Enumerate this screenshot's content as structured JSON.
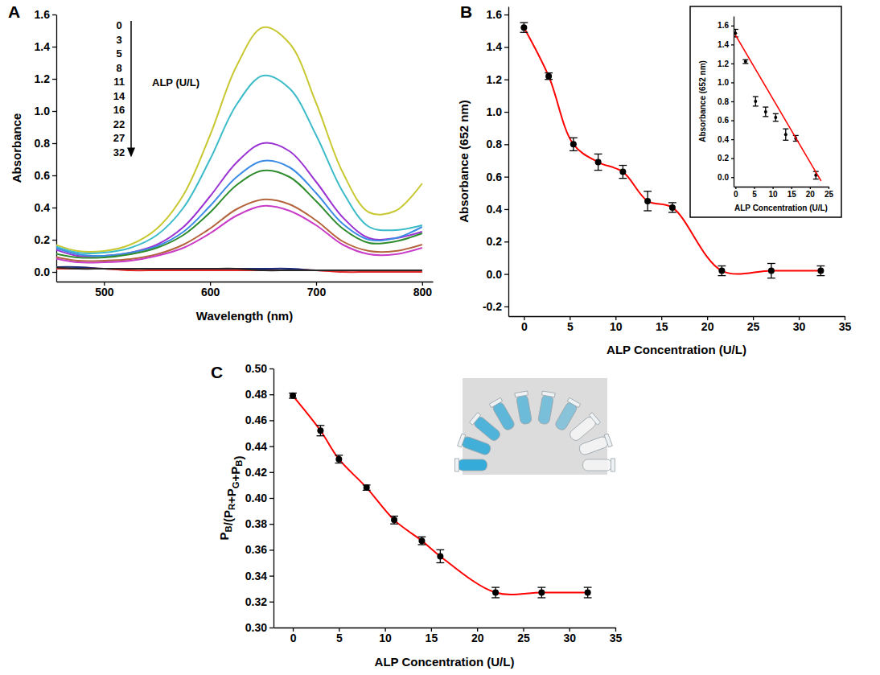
{
  "chart_data": [
    {
      "panel": "A",
      "type": "line",
      "x_label": "Wavelength (nm)",
      "y_label": "Absorbance",
      "x": [
        450,
        475,
        500,
        525,
        550,
        575,
        600,
        625,
        650,
        675,
        700,
        725,
        750,
        775,
        800
      ],
      "xlim": [
        455,
        810
      ],
      "xticks": [
        500,
        600,
        700,
        800
      ],
      "ylim": [
        -0.06,
        1.6
      ],
      "yticks": [
        {
          "value": 0,
          "label": "0.0"
        },
        0.2,
        0.4,
        0.6,
        0.8,
        {
          "value": 1,
          "label": "1.0"
        },
        1.2,
        1.4,
        1.6
      ],
      "legend": "upper left",
      "legend_title": "ALP (U/L)",
      "series": [
        {
          "name": "0",
          "color": "#c8c832",
          "values": [
            0.18,
            0.13,
            0.13,
            0.17,
            0.27,
            0.48,
            0.85,
            1.28,
            1.52,
            1.42,
            1.05,
            0.62,
            0.37,
            0.38,
            0.55
          ]
        },
        {
          "name": "3",
          "color": "#3cbcc8",
          "values": [
            0.17,
            0.12,
            0.12,
            0.15,
            0.23,
            0.4,
            0.7,
            1.04,
            1.22,
            1.14,
            0.85,
            0.5,
            0.28,
            0.26,
            0.29
          ]
        },
        {
          "name": "5",
          "color": "#9b32d2",
          "values": [
            0.15,
            0.1,
            0.1,
            0.12,
            0.17,
            0.28,
            0.47,
            0.68,
            0.8,
            0.75,
            0.56,
            0.34,
            0.21,
            0.21,
            0.25
          ]
        },
        {
          "name": "8",
          "color": "#3c8ce6",
          "values": [
            0.16,
            0.11,
            0.1,
            0.12,
            0.16,
            0.25,
            0.41,
            0.59,
            0.69,
            0.65,
            0.49,
            0.3,
            0.2,
            0.21,
            0.28
          ]
        },
        {
          "name": "11",
          "color": "#2e8b2e",
          "values": [
            0.12,
            0.09,
            0.09,
            0.11,
            0.15,
            0.23,
            0.37,
            0.54,
            0.63,
            0.59,
            0.44,
            0.27,
            0.18,
            0.19,
            0.24
          ]
        },
        {
          "name": "14",
          "color": "#b4643c",
          "values": [
            0.1,
            0.07,
            0.07,
            0.08,
            0.11,
            0.17,
            0.27,
            0.39,
            0.45,
            0.42,
            0.32,
            0.19,
            0.13,
            0.13,
            0.17
          ]
        },
        {
          "name": "16",
          "color": "#c83cc8",
          "values": [
            0.09,
            0.06,
            0.06,
            0.07,
            0.1,
            0.15,
            0.24,
            0.35,
            0.41,
            0.38,
            0.29,
            0.17,
            0.11,
            0.11,
            0.15
          ]
        },
        {
          "name": "22",
          "color": "#1c2878",
          "values": [
            0.03,
            0.03,
            0.02,
            0.02,
            0.02,
            0.02,
            0.02,
            0.02,
            0.02,
            0.02,
            0.01,
            0.01,
            0.01,
            0.01,
            0.01
          ]
        },
        {
          "name": "27",
          "color": "#e02828",
          "values": [
            0.02,
            0.02,
            0.02,
            0.01,
            0.01,
            0.01,
            0.01,
            0.01,
            0.01,
            0.01,
            0.01,
            0.0,
            0.0,
            0.0,
            0.0
          ]
        },
        {
          "name": "32",
          "color": "#282828",
          "values": [
            0.03,
            0.02,
            0.02,
            0.02,
            0.02,
            0.02,
            0.02,
            0.02,
            0.01,
            0.01,
            0.01,
            0.01,
            0.01,
            0.01,
            0.01
          ]
        }
      ]
    },
    {
      "panel": "B",
      "type": "line",
      "marker": "circle",
      "x_label": "ALP Concentration (U/L)",
      "y_label": "Absorbance (652 nm)",
      "x": [
        0,
        2.7,
        5.4,
        8.1,
        10.8,
        13.5,
        16.2,
        21.6,
        27,
        32.4
      ],
      "xlim": [
        -1.7,
        35
      ],
      "xticks": [
        0,
        5,
        10,
        15,
        20,
        25,
        30,
        35
      ],
      "ylim": [
        -0.26,
        1.65
      ],
      "yticks": [
        -0.2,
        {
          "value": 0,
          "label": "0.0"
        },
        0.2,
        0.4,
        0.6,
        0.8,
        {
          "value": 1,
          "label": "1.0"
        },
        1.2,
        1.4,
        1.6
      ],
      "series": [
        {
          "color": "#ff0000",
          "values": [
            1.52,
            1.22,
            0.8,
            0.69,
            0.63,
            0.45,
            0.41,
            0.02,
            0.02,
            0.02
          ],
          "errors": [
            0.03,
            0.02,
            0.04,
            0.05,
            0.04,
            0.06,
            0.03,
            0.03,
            0.045,
            0.03
          ]
        }
      ]
    },
    {
      "type": "scatter",
      "x_label": "ALP Concentration (U/L)",
      "y_label": "Absorbance (652 nm)",
      "xlim": [
        -0.5,
        25
      ],
      "xticks": [
        0,
        5,
        10,
        15,
        20,
        25
      ],
      "ylim": [
        -0.1,
        1.7
      ],
      "yticks": [
        {
          "value": 0,
          "label": "0.0"
        },
        0.2,
        0.4,
        0.6,
        0.8,
        {
          "value": 1,
          "label": "1.0"
        },
        1.2,
        1.4,
        1.6
      ],
      "series": [
        {
          "type": "scatter",
          "marker": "circle",
          "color": "#000000",
          "x": [
            0,
            2.7,
            5.4,
            8.1,
            10.8,
            13.5,
            16.2,
            21.6
          ],
          "values": [
            1.52,
            1.22,
            0.8,
            0.69,
            0.63,
            0.45,
            0.41,
            0.02
          ],
          "errors": [
            0.04,
            0.02,
            0.05,
            0.05,
            0.04,
            0.06,
            0.03,
            0.04
          ]
        },
        {
          "type": "line",
          "color": "#ff0000",
          "line_style": "solid",
          "x": [
            0,
            23
          ],
          "values": [
            1.5,
            -0.04
          ]
        }
      ]
    },
    {
      "panel": "C",
      "type": "line",
      "marker": "circle",
      "x_label": "ALP Concentration (U/L)",
      "y_label": "PB/(PR+PG+PB)",
      "x": [
        0,
        3,
        5,
        8,
        11,
        14,
        16,
        22,
        27,
        32
      ],
      "xlim": [
        -2.1,
        35
      ],
      "xticks": [
        0,
        5,
        10,
        15,
        20,
        25,
        30,
        35
      ],
      "ylim": [
        0.3,
        0.5
      ],
      "yticks": [
        {
          "value": 0.3,
          "label": "0.30"
        },
        0.32,
        0.34,
        0.36,
        0.38,
        {
          "value": 0.4,
          "label": "0.40"
        },
        0.42,
        0.44,
        0.46,
        0.48,
        {
          "value": 0.5,
          "label": "0.50"
        }
      ],
      "series": [
        {
          "color": "#ff0000",
          "values": [
            0.479,
            0.452,
            0.43,
            0.408,
            0.383,
            0.367,
            0.355,
            0.327,
            0.327,
            0.327
          ],
          "errors": [
            0.002,
            0.004,
            0.003,
            0.002,
            0.003,
            0.003,
            0.005,
            0.004,
            0.004,
            0.004
          ]
        }
      ]
    }
  ]
}
